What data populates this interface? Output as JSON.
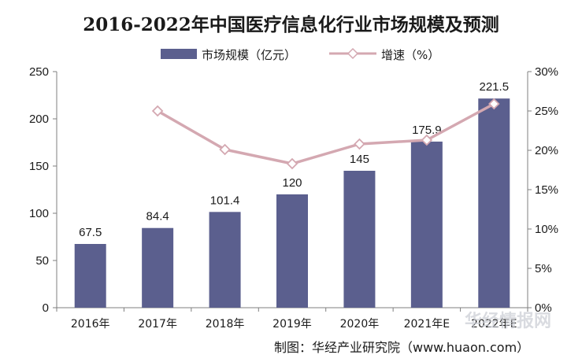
{
  "chart_data": {
    "type": "bar",
    "title": "2016-2022年中国医疗信息化行业市场规模及预测",
    "categories": [
      "2016年",
      "2017年",
      "2018年",
      "2019年",
      "2020年",
      "2021年E",
      "2022年E"
    ],
    "series": [
      {
        "name": "市场规模（亿元）",
        "type": "bar",
        "axis": "left",
        "values": [
          67.5,
          84.4,
          101.4,
          120,
          145,
          175.9,
          221.5
        ],
        "labels": [
          "67.5",
          "84.4",
          "101.4",
          "120",
          "145",
          "175.9",
          "221.5"
        ],
        "color": "#5b5f8e"
      },
      {
        "name": "增速（%）",
        "type": "line",
        "axis": "right",
        "values": [
          null,
          25.0,
          20.1,
          18.3,
          20.8,
          21.3,
          25.9
        ],
        "color": "#d4a8b1"
      }
    ],
    "y_left": {
      "min": 0,
      "max": 250,
      "ticks": [
        "0",
        "50",
        "100",
        "150",
        "200",
        "250"
      ]
    },
    "y_right": {
      "min": 0,
      "max": 30,
      "ticks": [
        "0%",
        "5%",
        "10%",
        "15%",
        "20%",
        "25%",
        "30%"
      ]
    },
    "legend_position": "top",
    "grid": false
  },
  "source": "制图：华经产业研究院（www.huaon.com）",
  "watermark": "华经情报网"
}
